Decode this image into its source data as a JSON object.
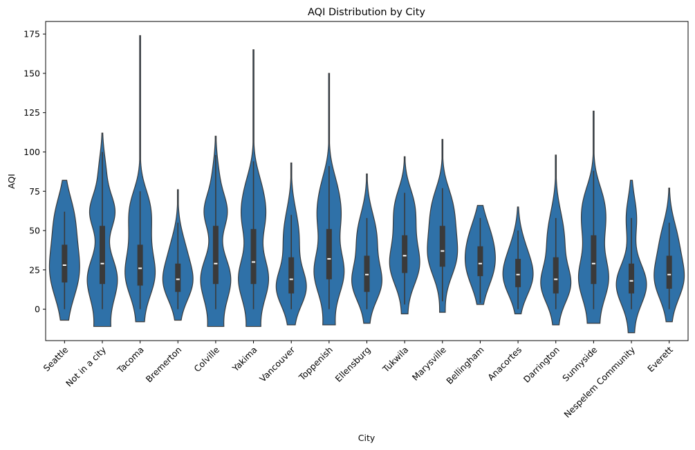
{
  "chart_data": {
    "type": "violin",
    "title": "AQI Distribution by City",
    "xlabel": "City",
    "ylabel": "AQI",
    "ylim": [
      -20,
      183
    ],
    "yticks": [
      0,
      25,
      50,
      75,
      100,
      125,
      150,
      175
    ],
    "grid": false,
    "legend": "none",
    "color": "#2f71a8",
    "edge_color": "#3a3a3a",
    "cities": [
      {
        "name": "Seattle",
        "min": -7,
        "max": 82,
        "q1": 17,
        "median": 28,
        "q3": 41,
        "whisker_low": 0,
        "whisker_high": 62,
        "modes": [
          [
            22,
            1.0
          ],
          [
            48,
            0.55
          ],
          [
            63,
            0.35
          ]
        ],
        "spread": 16
      },
      {
        "name": "Not in a city",
        "min": -11,
        "max": 112,
        "q1": 16,
        "median": 29,
        "q3": 53,
        "whisker_low": 0,
        "whisker_high": 100,
        "modes": [
          [
            20,
            1.0
          ],
          [
            62,
            0.95
          ],
          [
            88,
            0.25
          ]
        ],
        "spread": 14
      },
      {
        "name": "Tacoma",
        "min": -8,
        "max": 174,
        "q1": 15,
        "median": 26,
        "q3": 41,
        "whisker_low": 0,
        "whisker_high": 75,
        "modes": [
          [
            22,
            1.0
          ],
          [
            52,
            0.6
          ],
          [
            68,
            0.4
          ]
        ],
        "spread": 14
      },
      {
        "name": "Bremerton",
        "min": -7,
        "max": 76,
        "q1": 11,
        "median": 19,
        "q3": 29,
        "whisker_low": 0,
        "whisker_high": 55,
        "modes": [
          [
            17,
            1.0
          ],
          [
            38,
            0.45
          ]
        ],
        "spread": 12
      },
      {
        "name": "Colville",
        "min": -11,
        "max": 110,
        "q1": 16,
        "median": 29,
        "q3": 53,
        "whisker_low": 0,
        "whisker_high": 98,
        "modes": [
          [
            20,
            1.0
          ],
          [
            62,
            0.85
          ],
          [
            85,
            0.2
          ]
        ],
        "spread": 14
      },
      {
        "name": "Yakima",
        "min": -11,
        "max": 165,
        "q1": 16,
        "median": 30,
        "q3": 51,
        "whisker_low": 0,
        "whisker_high": 94,
        "modes": [
          [
            20,
            1.0
          ],
          [
            60,
            0.85
          ],
          [
            80,
            0.3
          ]
        ],
        "spread": 14
      },
      {
        "name": "Vancouver",
        "min": -10,
        "max": 93,
        "q1": 10,
        "median": 19,
        "q3": 33,
        "whisker_low": 0,
        "whisker_high": 60,
        "modes": [
          [
            14,
            1.0
          ],
          [
            42,
            0.4
          ],
          [
            58,
            0.25
          ]
        ],
        "spread": 12
      },
      {
        "name": "Toppenish",
        "min": -10,
        "max": 150,
        "q1": 19,
        "median": 32,
        "q3": 51,
        "whisker_low": 0,
        "whisker_high": 91,
        "modes": [
          [
            24,
            1.0
          ],
          [
            60,
            0.8
          ],
          [
            80,
            0.3
          ]
        ],
        "spread": 14
      },
      {
        "name": "Ellensburg",
        "min": -9,
        "max": 86,
        "q1": 11,
        "median": 22,
        "q3": 34,
        "whisker_low": 0,
        "whisker_high": 58,
        "modes": [
          [
            17,
            1.0
          ],
          [
            42,
            0.5
          ],
          [
            56,
            0.3
          ]
        ],
        "spread": 12
      },
      {
        "name": "Tukwila",
        "min": -3,
        "max": 97,
        "q1": 23,
        "median": 34,
        "q3": 47,
        "whisker_low": 3,
        "whisker_high": 74,
        "modes": [
          [
            28,
            1.0
          ],
          [
            55,
            0.6
          ],
          [
            70,
            0.35
          ]
        ],
        "spread": 13
      },
      {
        "name": "Marysville",
        "min": -2,
        "max": 108,
        "q1": 27,
        "median": 37,
        "q3": 53,
        "whisker_low": 5,
        "whisker_high": 77,
        "modes": [
          [
            33,
            1.0
          ],
          [
            57,
            0.75
          ],
          [
            72,
            0.3
          ]
        ],
        "spread": 13
      },
      {
        "name": "Bellingham",
        "min": 3,
        "max": 66,
        "q1": 21,
        "median": 29,
        "q3": 40,
        "whisker_low": 4,
        "whisker_high": 58,
        "modes": [
          [
            26,
            1.0
          ],
          [
            46,
            0.75
          ]
        ],
        "spread": 13
      },
      {
        "name": "Anacortes",
        "min": -3,
        "max": 65,
        "q1": 14,
        "median": 22,
        "q3": 32,
        "whisker_low": 0,
        "whisker_high": 50,
        "modes": [
          [
            20,
            1.0
          ],
          [
            38,
            0.4
          ]
        ],
        "spread": 12
      },
      {
        "name": "Darrington",
        "min": -10,
        "max": 98,
        "q1": 10,
        "median": 19,
        "q3": 33,
        "whisker_low": 0,
        "whisker_high": 58,
        "modes": [
          [
            16,
            1.0
          ],
          [
            42,
            0.45
          ],
          [
            58,
            0.25
          ]
        ],
        "spread": 12
      },
      {
        "name": "Sunnyside",
        "min": -9,
        "max": 126,
        "q1": 16,
        "median": 29,
        "q3": 47,
        "whisker_low": 0,
        "whisker_high": 88,
        "modes": [
          [
            20,
            1.0
          ],
          [
            55,
            0.75
          ],
          [
            72,
            0.35
          ]
        ],
        "spread": 14
      },
      {
        "name": "Nespelem Community",
        "min": -15,
        "max": 82,
        "q1": 10,
        "median": 18,
        "q3": 29,
        "whisker_low": 0,
        "whisker_high": 58,
        "modes": [
          [
            16,
            1.0
          ],
          [
            58,
            0.35
          ]
        ],
        "spread": 13
      },
      {
        "name": "Everett",
        "min": -8,
        "max": 77,
        "q1": 13,
        "median": 22,
        "q3": 34,
        "whisker_low": 0,
        "whisker_high": 55,
        "modes": [
          [
            19,
            1.0
          ],
          [
            44,
            0.55
          ]
        ],
        "spread": 13
      }
    ]
  }
}
